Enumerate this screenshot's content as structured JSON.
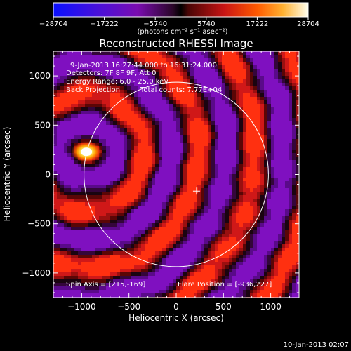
{
  "chart_data": {
    "type": "heatmap",
    "title": "Reconstructed RHESSI Image",
    "xlabel": "Heliocentric X (arcsec)",
    "ylabel": "Heliocentric Y (arcsec)",
    "xlim": [
      -1300,
      1300
    ],
    "ylim": [
      -1250,
      1250
    ],
    "x_ticks": [
      -1000,
      -500,
      0,
      500,
      1000
    ],
    "y_ticks": [
      -1000,
      -500,
      0,
      500,
      1000
    ],
    "x_tick_labels": [
      "−1000",
      "−500",
      "0",
      "500",
      "1000"
    ],
    "y_tick_labels": [
      "−1000",
      "−500",
      "0",
      "500",
      "1000"
    ],
    "colorbar": {
      "range": [
        -28704,
        28704
      ],
      "tick_values": [
        -28704,
        -17222,
        -5740,
        5740,
        17222,
        28704
      ],
      "tick_labels": [
        "−28704",
        "−17222",
        "−5740",
        "5740",
        "17222",
        "28704"
      ],
      "units_label": "(photons cm⁻² s⁻¹ asec⁻²)"
    },
    "annotations": {
      "time_range": "9-Jan-2013 16:27:44.000 to 16:31:24.000",
      "detectors": "Detectors: 7F 8F 9F, Att 0",
      "energy_range": "Energy Range: 6.0 - 25.0 keV",
      "method": "Back Projection",
      "total_counts": "Total counts: 7.77E+04",
      "spin_axis": "Spin Axis = [215,-169]",
      "flare_position": "Flare Position = [-936,227]"
    },
    "solar_limb": {
      "center": [
        0,
        0
      ],
      "radius_arcsec": 976
    },
    "bright_source": {
      "x": -950,
      "y": 230,
      "value": 28704
    },
    "marker": {
      "x": 215,
      "y": -169
    },
    "timestamp": "10-Jan-2013 02:07"
  },
  "colors": {
    "background": "#000000",
    "foreground": "#ffffff",
    "colormap": [
      "#1010ff",
      "#6a0aa8",
      "#1e0530",
      "#3a0505",
      "#c81414",
      "#ff8c00",
      "#ffff50",
      "#ffffff"
    ]
  }
}
